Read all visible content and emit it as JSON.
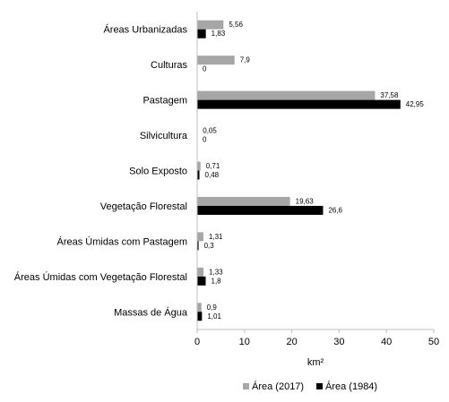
{
  "chart_data": {
    "type": "bar",
    "orientation": "horizontal",
    "categories": [
      "Áreas Urbanizadas",
      "Culturas",
      "Pastagem",
      "Silvicultura",
      "Solo Exposto",
      "Vegetação Florestal",
      "Áreas Úmidas com Pastagem",
      "Áreas Úmidas com Vegetação Florestal",
      "Massas de Água"
    ],
    "series": [
      {
        "name": "Área (2017)",
        "color": "#a6a6a6",
        "values": [
          5.56,
          7.9,
          37.58,
          0.05,
          0.71,
          19.63,
          1.31,
          1.33,
          0.9
        ],
        "labels": [
          "5,56",
          "7,9",
          "37,58",
          "0,05",
          "0,71",
          "19,63",
          "1,31",
          "1,33",
          "0,9"
        ]
      },
      {
        "name": "Área (1984)",
        "color": "#000000",
        "values": [
          1.83,
          0,
          42.95,
          0,
          0.48,
          26.6,
          0.3,
          1.8,
          1.01
        ],
        "labels": [
          "1,83",
          "0",
          "42,95",
          "0",
          "0,48",
          "26,6",
          "0,3",
          "1,8",
          "1,01"
        ]
      }
    ],
    "xlabel": "km²",
    "xlim": [
      0,
      50
    ],
    "xticks": [
      0,
      10,
      20,
      30,
      40,
      50
    ],
    "grid": false,
    "legend_position": "bottom"
  }
}
